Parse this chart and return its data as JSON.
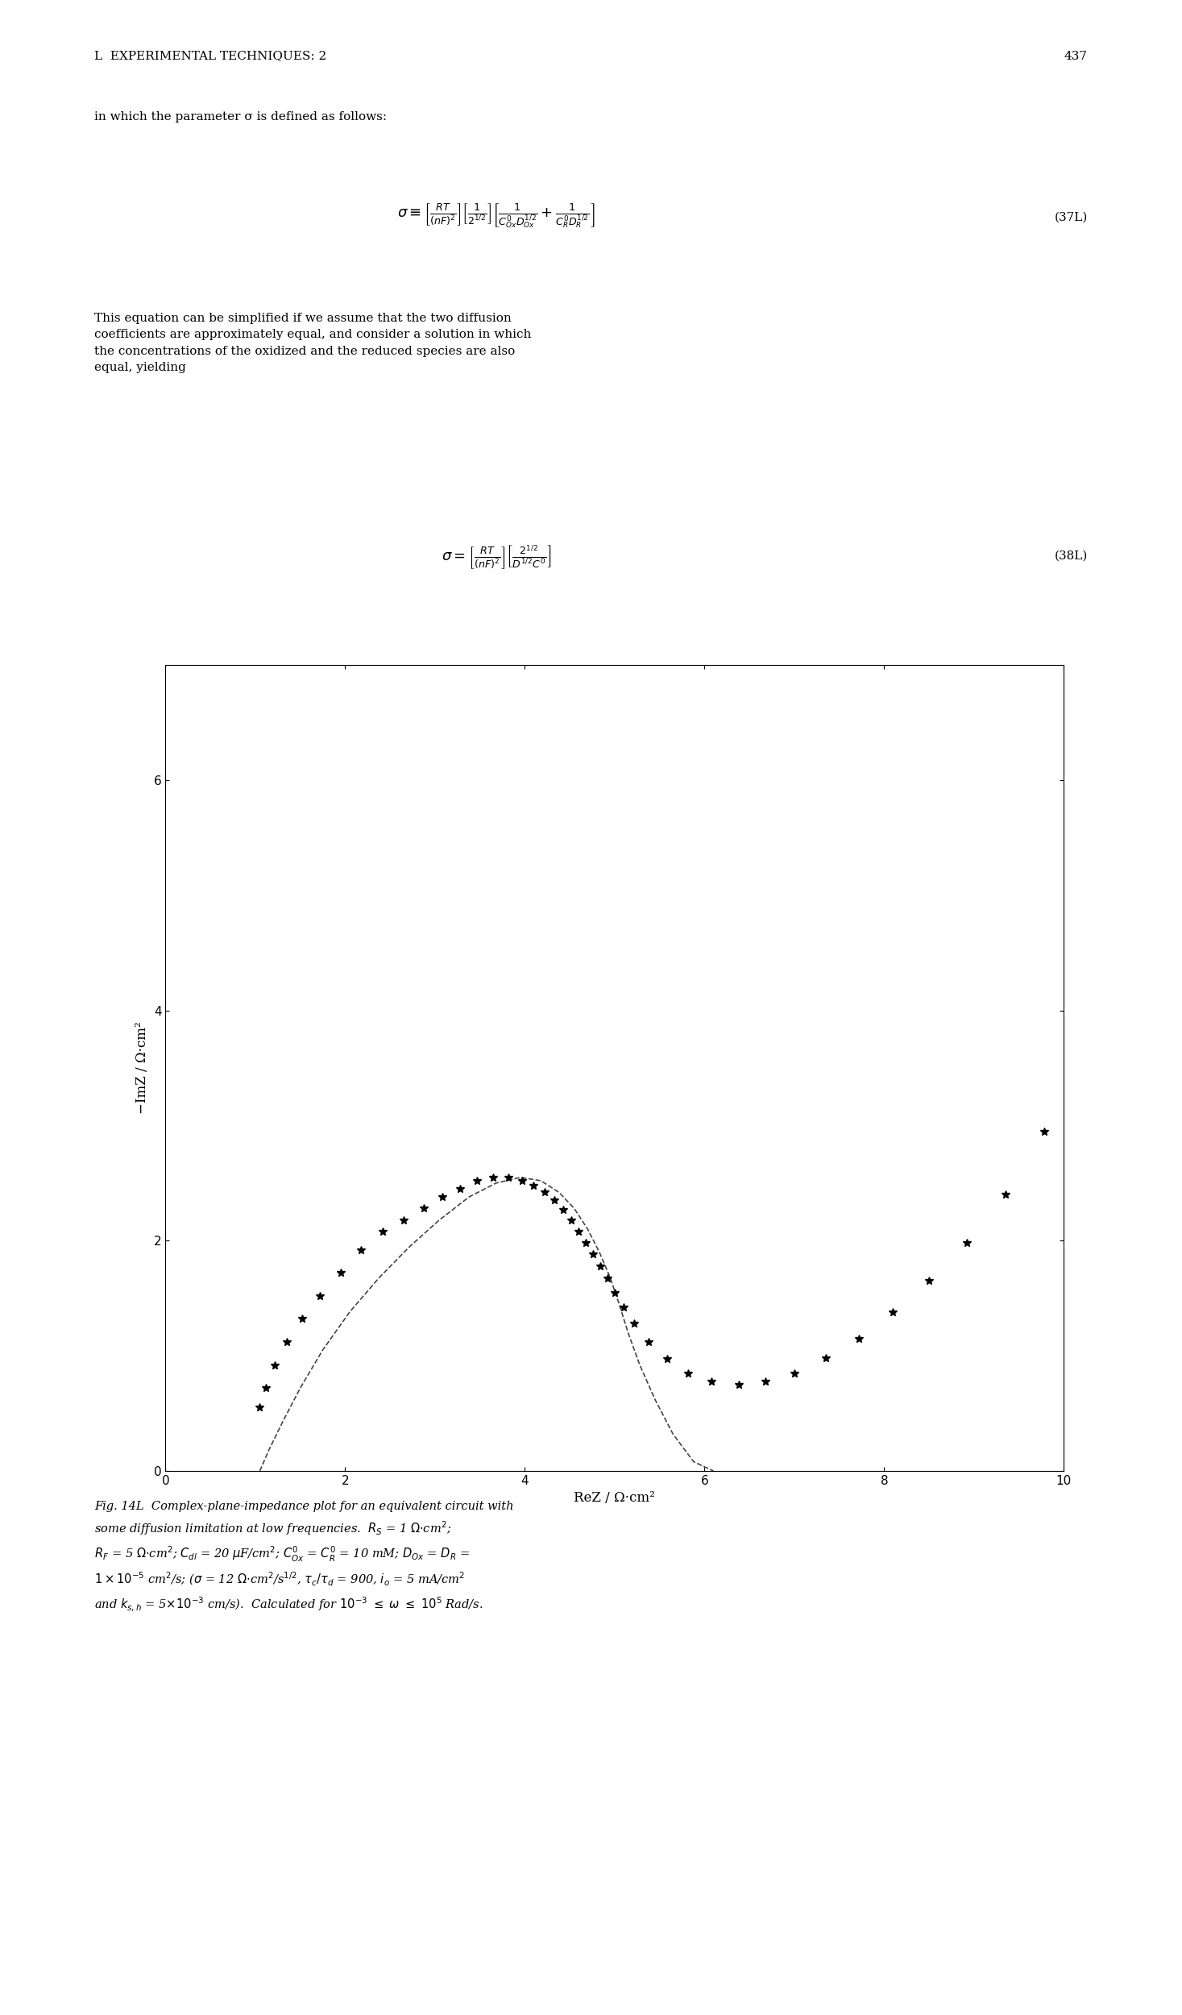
{
  "title_header": "L  EXPERIMENTAL TECHNIQUES: 2",
  "page_number": "437",
  "text_block1": "in which the parameter σ is defined as follows:",
  "eq37_label": "(37L)",
  "text_block2": "This equation can be simplified if we assume that the two diffusion coefficients are approximately equal, and consider a solution in which the concentrations of the oxidized and the reduced species are also equal, yielding",
  "eq38_label": "(38L)",
  "xlabel": "ReZ / Ω·cm²",
  "ylabel": "−ImZ / Ω·cm²",
  "xlim": [
    0,
    10
  ],
  "ylim": [
    0,
    7
  ],
  "xticks": [
    0,
    2,
    4,
    6,
    8,
    10
  ],
  "yticks": [
    0,
    2,
    4,
    6
  ],
  "fig_caption": "Fig. 14L  Complex-plane-impedance plot for an equivalent circuit with some diffusion limitation at low frequencies.  Rₛ = 1 Ω·cm²; Rₑ = 5 Ω·cm²; Cₑᴵ = 20 μF/cm²; C°ₒₓ = C°ᴿ = 10 mM; Dₒₓ = Dᴿ = 1×10⁻⁵ cm²/s; (σ = 12 Ω·cm²/s½, τₑ/τₑ = 900, iₒ = 5 mA/cm² and kₛʰ = 5×10⁻³ cm/s).  Calculated for 10⁻³ ≤ ω ≤ 10⁵ Rad/s.",
  "background_color": "#ffffff",
  "star_color": "#000000",
  "dashed_line_color": "#444444",
  "star_data_x": [
    1.05,
    1.12,
    1.22,
    1.35,
    1.52,
    1.72,
    1.95,
    2.18,
    2.42,
    2.65,
    2.88,
    3.08,
    3.28,
    3.47,
    3.65,
    3.82,
    3.97,
    4.1,
    4.22,
    4.33,
    4.43,
    4.52,
    4.6,
    4.68,
    4.76,
    4.84,
    4.92,
    5.0,
    5.1,
    5.22,
    5.38,
    5.58,
    5.82,
    6.08,
    6.38,
    6.68,
    7.0,
    7.35,
    7.72,
    8.1,
    8.5,
    8.92,
    9.35,
    9.78
  ],
  "star_data_y": [
    0.55,
    0.72,
    0.92,
    1.12,
    1.32,
    1.52,
    1.72,
    1.92,
    2.08,
    2.18,
    2.28,
    2.38,
    2.45,
    2.52,
    2.55,
    2.55,
    2.52,
    2.48,
    2.42,
    2.35,
    2.27,
    2.18,
    2.08,
    1.98,
    1.88,
    1.78,
    1.67,
    1.55,
    1.42,
    1.28,
    1.12,
    0.97,
    0.85,
    0.78,
    0.75,
    0.78,
    0.85,
    0.98,
    1.15,
    1.38,
    1.65,
    1.98,
    2.4,
    2.95
  ],
  "dashed_line_x": [
    1.05,
    1.15,
    1.3,
    1.5,
    1.75,
    2.05,
    2.38,
    2.72,
    3.05,
    3.38,
    3.68,
    3.95,
    4.18,
    4.38,
    4.55,
    4.7,
    4.83,
    4.95,
    5.05,
    5.15,
    5.28,
    5.45,
    5.65,
    5.88,
    6.1
  ],
  "dashed_line_y": [
    0.0,
    0.18,
    0.42,
    0.72,
    1.05,
    1.38,
    1.68,
    1.95,
    2.18,
    2.38,
    2.5,
    2.55,
    2.52,
    2.42,
    2.28,
    2.1,
    1.9,
    1.68,
    1.45,
    1.2,
    0.92,
    0.62,
    0.32,
    0.08,
    0.0
  ]
}
